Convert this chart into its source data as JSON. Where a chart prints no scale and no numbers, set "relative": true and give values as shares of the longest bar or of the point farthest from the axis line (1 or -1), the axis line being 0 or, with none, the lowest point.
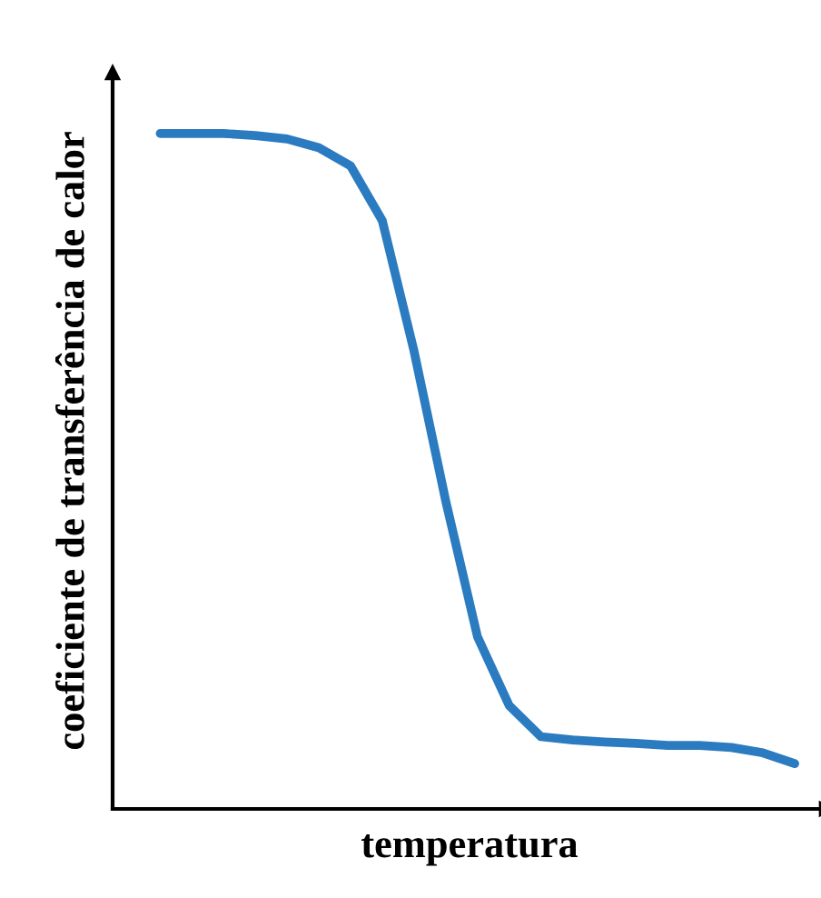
{
  "chart_data": {
    "type": "line",
    "relative": true,
    "xlabel": "temperatura",
    "ylabel": "coeficiente de transferência de calor",
    "tick_labels": false,
    "grid": false,
    "legend": false,
    "marker": "none",
    "line_style": "solid",
    "categories": [
      null,
      null,
      null,
      null,
      null,
      null,
      null,
      null,
      null,
      null,
      null,
      null,
      null,
      null,
      null,
      null,
      null,
      null,
      null,
      null,
      null
    ],
    "series": [
      {
        "color": "#2b7bc0",
        "values": [
          1.0,
          1.0,
          1.0,
          0.997,
          0.992,
          0.979,
          0.952,
          0.871,
          0.678,
          0.456,
          0.255,
          0.153,
          0.107,
          0.102,
          0.099,
          0.097,
          0.094,
          0.094,
          0.091,
          0.083,
          0.067
        ]
      }
    ]
  }
}
